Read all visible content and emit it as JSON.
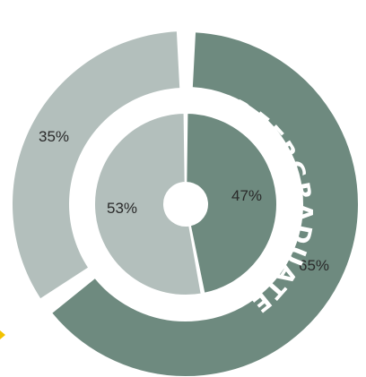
{
  "chart_data": [
    {
      "type": "pie",
      "variant": "donut",
      "ring": "outer",
      "label": "GRADUATE",
      "slices": [
        {
          "label": "35%",
          "value": 35,
          "color": "#b3bfbc"
        },
        {
          "label": "65%",
          "value": 65,
          "color": "#6e8a7f"
        }
      ]
    },
    {
      "type": "pie",
      "variant": "donut",
      "ring": "inner",
      "label": "UNDEERGRADUATE",
      "slices": [
        {
          "label": "53%",
          "value": 53,
          "color": "#b3bfbc"
        },
        {
          "label": "47%",
          "value": 47,
          "color": "#6e8a7f"
        }
      ]
    }
  ],
  "accent_color": "#f2c200"
}
